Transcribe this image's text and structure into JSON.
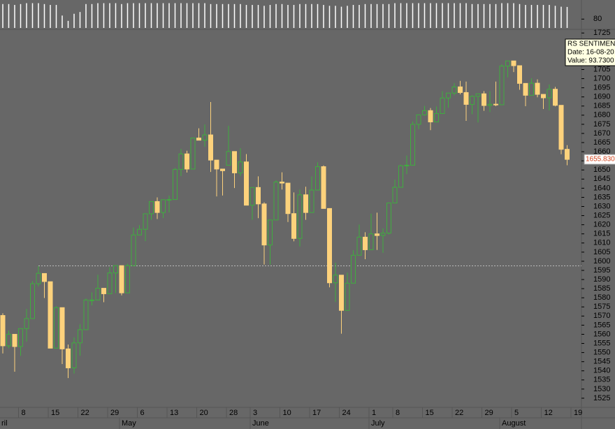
{
  "chart_data": {
    "type": "candlestick",
    "categories": [
      null,
      null,
      null,
      "8",
      null,
      null,
      null,
      null,
      "15",
      null,
      null,
      null,
      null,
      "22",
      null,
      null,
      null,
      null,
      "29",
      null,
      null,
      null,
      null,
      "6",
      null,
      null,
      null,
      null,
      "13",
      null,
      null,
      null,
      null,
      "20",
      null,
      null,
      null,
      null,
      "28",
      null,
      null,
      null,
      "3",
      null,
      null,
      null,
      null,
      "10",
      null,
      null,
      null,
      null,
      "17",
      null,
      null,
      null,
      null,
      "24",
      null,
      null,
      null,
      null,
      "1",
      null,
      null,
      null,
      "8",
      null,
      null,
      null,
      null,
      "15",
      null,
      null,
      null,
      null,
      "22",
      null,
      null,
      null,
      null,
      "29",
      null,
      null,
      null,
      null,
      "5",
      null,
      null,
      null,
      null,
      "12",
      null,
      null,
      null,
      null
    ],
    "months": [
      null,
      null,
      null,
      null,
      null,
      null,
      null,
      null,
      null,
      null,
      null,
      null,
      null,
      null,
      null,
      null,
      null,
      null,
      null,
      null,
      "May",
      null,
      null,
      null,
      null,
      null,
      null,
      null,
      null,
      null,
      null,
      null,
      null,
      null,
      null,
      null,
      null,
      null,
      null,
      null,
      null,
      null,
      "June",
      null,
      null,
      null,
      null,
      null,
      null,
      null,
      null,
      null,
      null,
      null,
      null,
      null,
      null,
      null,
      null,
      null,
      null,
      null,
      "July",
      null,
      null,
      null,
      null,
      null,
      null,
      null,
      null,
      null,
      null,
      null,
      null,
      null,
      null,
      null,
      null,
      null,
      null,
      null,
      null,
      null,
      "August",
      null,
      null,
      null,
      null,
      null,
      null,
      null,
      null,
      null,
      null,
      null
    ],
    "partial_month_label": "ril",
    "next_day_label": "19",
    "open": [
      1570.3,
      1553.7,
      1560,
      1553.3,
      1563.1,
      1568.6,
      1587.7,
      1593.3,
      1588.8,
      1552.4,
      1574.6,
      1552,
      1541.6,
      1555.3,
      1562.5,
      1578.8,
      1578.8,
      1585.2,
      1582.2,
      1593.6,
      1597.6,
      1582.7,
      1597.6,
      1614.4,
      1617.5,
      1626,
      1632.7,
      1626.7,
      1633.7,
      1633.8,
      1650.3,
      1658.8,
      1650.5,
      1667.5,
      1666.3,
      1669.2,
      1655.4,
      1650.5,
      1652.6,
      1660.1,
      1648.4,
      1654.4,
      1630.7,
      1640.4,
      1631.4,
      1608.9,
      1622.6,
      1643.4,
      1642.8,
      1626.1,
      1612.5,
      1636.4,
      1626.7,
      1639,
      1651.8,
      1628.9,
      1588.2,
      1592.4,
      1573.1,
      1588,
      1603.3,
      1613.2,
      1606.3,
      1615,
      1614.1,
      1615.4,
      1631.9,
      1640.5,
      1652.3,
      1652.6,
      1675,
      1680.2,
      1682.5,
      1676.3,
      1680.9,
      1689.4,
      1692.1,
      1695.5,
      1692.4,
      1685.9,
      1690.3,
      1691.7,
      1685.3,
      1686,
      1685.7,
      1706.9,
      1709.7,
      1707.1,
      1697.4,
      1690.9,
      1697.5,
      1691.4,
      1689.5,
      1694.2,
      1685.4,
      1661.3
    ],
    "high": [
      1571.5,
      1562,
      1560,
      1563.1,
      1573.9,
      1589.1,
      1597.4,
      1593.3,
      1588.8,
      1575.4,
      1574.6,
      1554.4,
      1558.3,
      1565.6,
      1579.6,
      1583,
      1592.6,
      1585.2,
      1596.7,
      1597.6,
      1597.6,
      1598.6,
      1618.5,
      1619.8,
      1626,
      1632.8,
      1635,
      1633.7,
      1636,
      1651.1,
      1661.5,
      1660.5,
      1667.5,
      1672.8,
      1674.9,
      1687.2,
      1655.4,
      1650.5,
      1674.2,
      1660.1,
      1661.9,
      1658.7,
      1640.4,
      1646.5,
      1632.3,
      1622.6,
      1644.4,
      1648.7,
      1642.8,
      1637.7,
      1639.3,
      1640.8,
      1646.5,
      1654.2,
      1652.5,
      1628.9,
      1599.2,
      1592.4,
      1593.8,
      1606,
      1620.1,
      1615.9,
      1626.1,
      1626.6,
      1618,
      1632.1,
      1644.7,
      1652.9,
      1657.9,
      1676.6,
      1680.2,
      1685.1,
      1683.9,
      1684.8,
      1693.1,
      1692.1,
      1697.6,
      1698.8,
      1698.4,
      1690.9,
      1691.7,
      1693.2,
      1693.1,
      1698.4,
      1707.9,
      1709.7,
      1709.7,
      1707.1,
      1697.4,
      1700.2,
      1699.6,
      1691.5,
      1696.8,
      1695.5,
      1685.4,
      1663.6
    ],
    "low": [
      1549.5,
      1552.4,
      1539.5,
      1548.2,
      1556,
      1568.6,
      1586.2,
      1579.9,
      1552.3,
      1552.4,
      1543.7,
      1536,
      1538.5,
      1548.2,
      1562.5,
      1575.8,
      1578.8,
      1577.6,
      1582.2,
      1582.6,
      1581.3,
      1582.7,
      1597.6,
      1614.2,
      1611,
      1622.7,
      1623.1,
      1623.7,
      1626.7,
      1633.8,
      1646.7,
      1648.6,
      1650.5,
      1666.3,
      1662.7,
      1648.9,
      1635.5,
      1636,
      1652.6,
      1640.1,
      1646.7,
      1630.7,
      1622.7,
      1623.6,
      1598.2,
      1598.2,
      1622.6,
      1639.3,
      1621.5,
      1610.9,
      1608.1,
      1622.7,
      1626.7,
      1639,
      1628.9,
      1585.7,
      1577.7,
      1560.3,
      1573.1,
      1588,
      1603.3,
      1601.1,
      1606.3,
      1606.2,
      1604.6,
      1614.7,
      1631.9,
      1640.5,
      1647.7,
      1652.6,
      1672.3,
      1679.7,
      1671.8,
      1676.3,
      1680.9,
      1684.1,
      1690.9,
      1691.4,
      1676.9,
      1680.5,
      1676,
      1682.4,
      1681.7,
      1684.9,
      1685.7,
      1700.7,
      1703.6,
      1693.9,
      1684.9,
      1690.9,
      1689.8,
      1683.4,
      1682.6,
      1684.8,
      1658.6,
      1652.6
    ],
    "close": [
      1553.7,
      1560,
      1553.3,
      1563.1,
      1568.6,
      1587.7,
      1593.4,
      1588.9,
      1552.4,
      1574.6,
      1552,
      1541.6,
      1555.3,
      1562.5,
      1578.8,
      1578.8,
      1585.2,
      1582.2,
      1593.6,
      1597.6,
      1582.7,
      1597.6,
      1614.4,
      1617.5,
      1626,
      1632.7,
      1626.7,
      1633.7,
      1633.8,
      1650.3,
      1658.8,
      1650.5,
      1667.5,
      1666.3,
      1669.2,
      1655.4,
      1650.5,
      1649.6,
      1660.1,
      1648.4,
      1654.4,
      1630.7,
      1640.4,
      1631.4,
      1608.9,
      1622.6,
      1643.4,
      1642.8,
      1626.1,
      1612.5,
      1636.4,
      1626.7,
      1639,
      1651.8,
      1628.9,
      1588.2,
      1592.4,
      1573.1,
      1588,
      1603.3,
      1613.2,
      1606.3,
      1615,
      1614.1,
      1615.4,
      1631.9,
      1640.5,
      1652.3,
      1652.6,
      1675,
      1680.2,
      1682.5,
      1676.3,
      1680.9,
      1689.4,
      1692.1,
      1695.5,
      1692.4,
      1685.9,
      1690.3,
      1691.7,
      1685.3,
      1686,
      1685.7,
      1706.9,
      1709.7,
      1707.1,
      1697.4,
      1690.9,
      1697.5,
      1691.4,
      1689.5,
      1694.2,
      1685.4,
      1661.3,
      1655.8
    ],
    "up_color": "#3fae3f",
    "down_color": "#fdd27c",
    "ylim": [
      1520,
      1727
    ],
    "yticks": [
      1525,
      1530,
      1535,
      1540,
      1545,
      1550,
      1555,
      1560,
      1565,
      1570,
      1575,
      1580,
      1585,
      1590,
      1595,
      1600,
      1605,
      1610,
      1615,
      1620,
      1625,
      1630,
      1635,
      1640,
      1645,
      1650,
      1655,
      1660,
      1665,
      1670,
      1675,
      1680,
      1685,
      1690,
      1695,
      1700,
      1705,
      1710,
      1715,
      1720,
      1725
    ],
    "reference_line": 1597.5,
    "last_label": "1655.830",
    "indicator": {
      "values": [
        97,
        97,
        96,
        97,
        98,
        98,
        98,
        97,
        96,
        96,
        84,
        78,
        86,
        88,
        97,
        97,
        98,
        98,
        98,
        98,
        97,
        98,
        98,
        98,
        98,
        98,
        98,
        98,
        98,
        98,
        98,
        98,
        98,
        98,
        98,
        97,
        97,
        97,
        97,
        97,
        97,
        96,
        96,
        96,
        95,
        96,
        97,
        97,
        96,
        96,
        97,
        97,
        97,
        97,
        96,
        95,
        95,
        94,
        95,
        96,
        96,
        97,
        97,
        97,
        97,
        97,
        98,
        98,
        98,
        98,
        98,
        98,
        98,
        98,
        98,
        98,
        98,
        98,
        98,
        97,
        97,
        97,
        97,
        97,
        98,
        98,
        98,
        97,
        96,
        96,
        96,
        96,
        96,
        95,
        94,
        93.73
      ],
      "color": "#ffffff",
      "ylim": [
        70,
        100
      ],
      "yticks": [
        80
      ]
    },
    "tooltip": {
      "title": "RS SENTIMENT",
      "date": "Date: 16-08-20",
      "value": "Value: 93.7300"
    }
  }
}
